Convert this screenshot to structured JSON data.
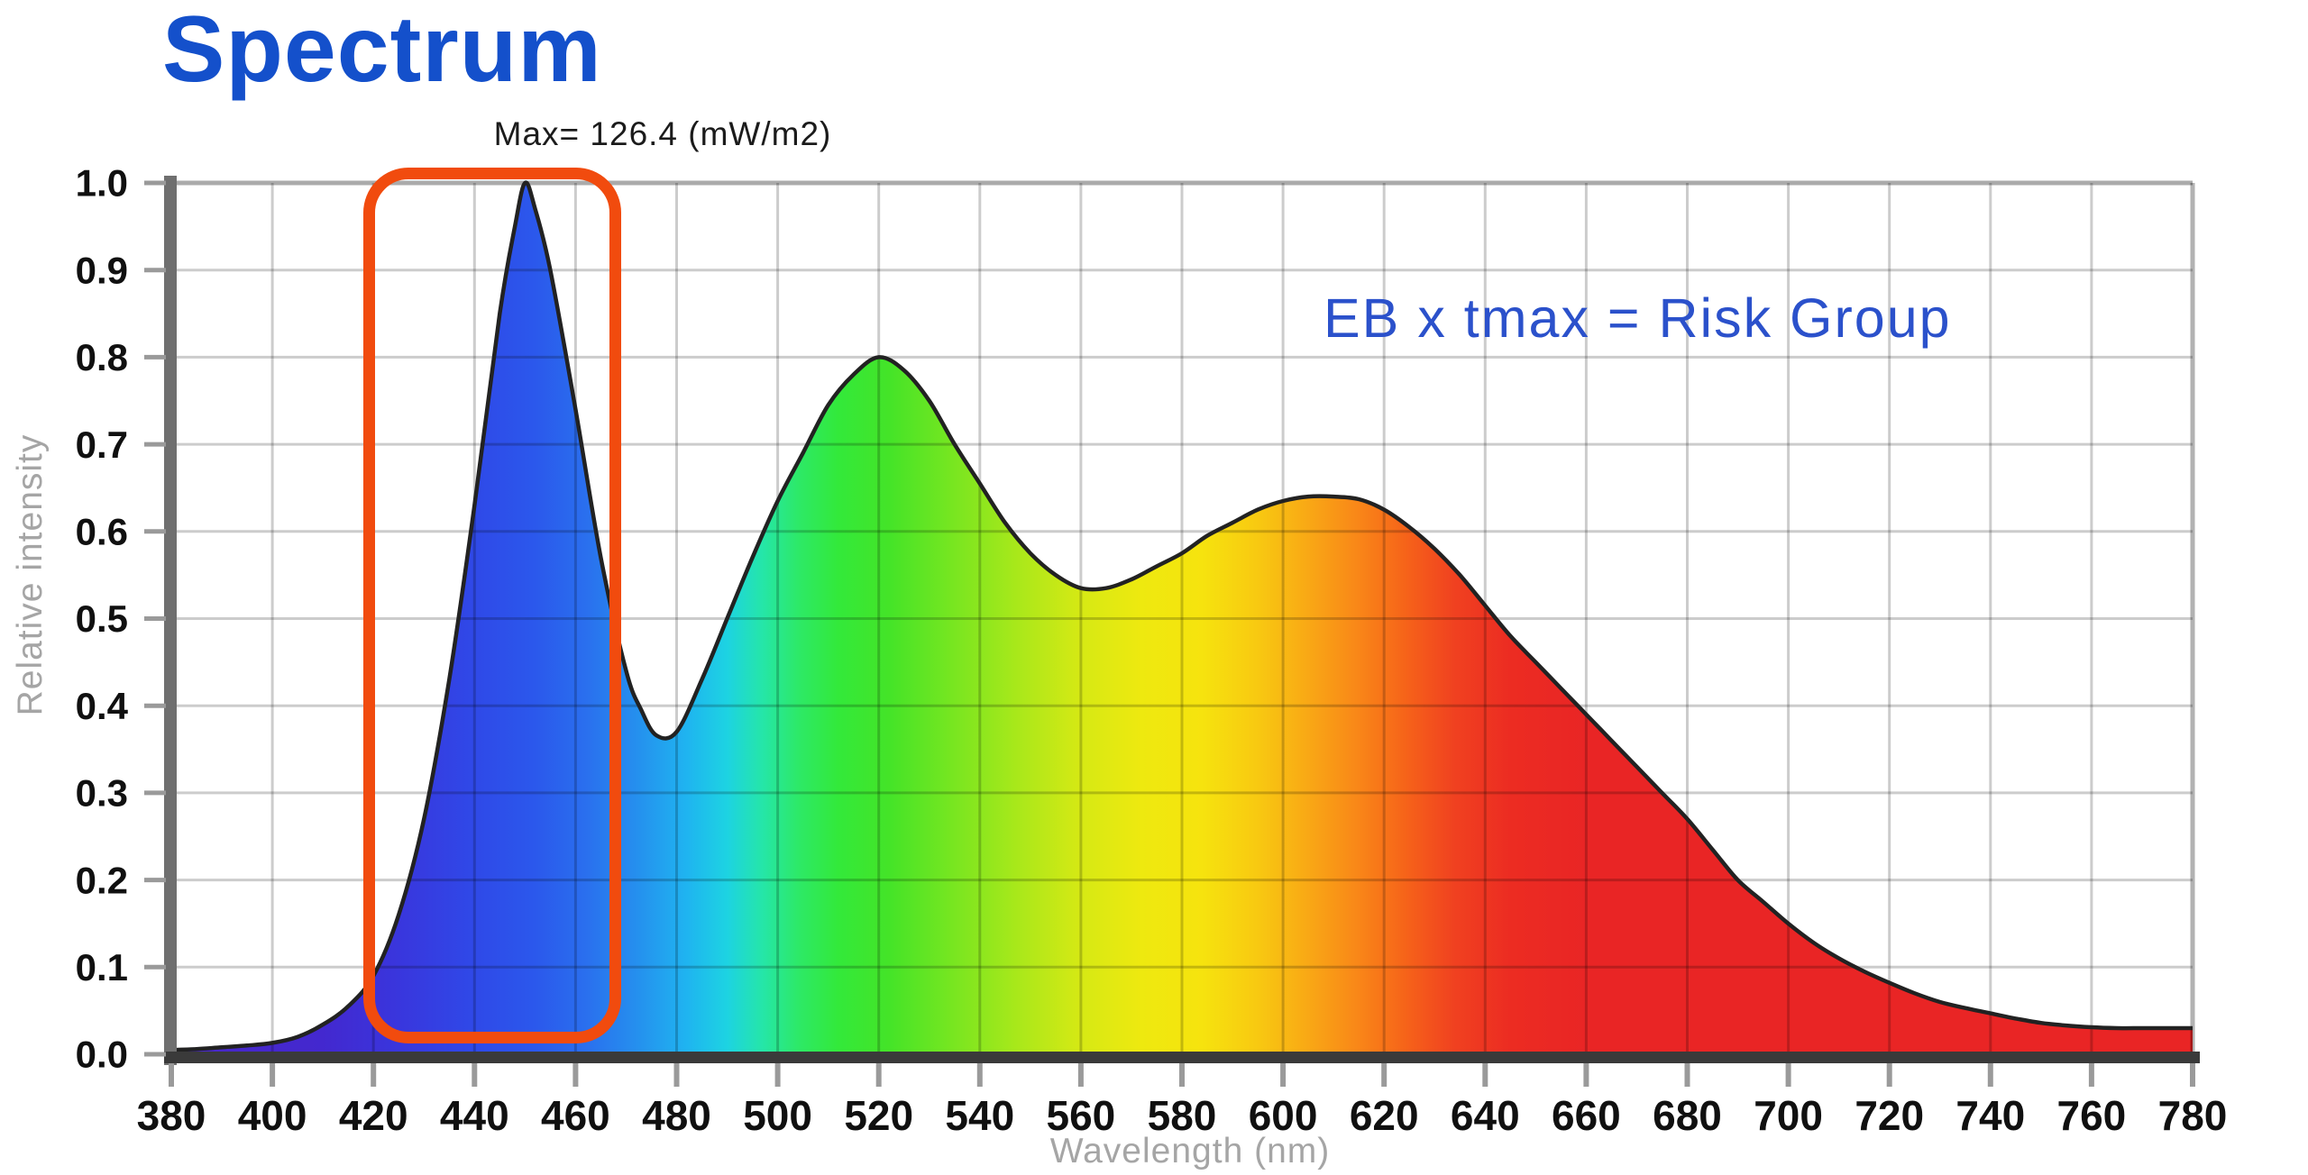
{
  "page": {
    "title": "Spectrum",
    "title_color": "#1450cb",
    "background": "#ffffff"
  },
  "annotations": {
    "max_label": "Max= 126.4 (mW/m2)",
    "risk_formula": "EB x tmax = Risk Group",
    "risk_formula_color": "#2b51cb"
  },
  "highlight_box": {
    "color": "#f14b0e",
    "wavelength_range": [
      418,
      469
    ],
    "intensity_range": [
      0.01,
      1.02
    ]
  },
  "chart_data": {
    "type": "area",
    "title": "Spectrum",
    "xlabel": "Wavelength (nm)",
    "ylabel": "Relative intensity",
    "xlim": [
      380,
      780
    ],
    "ylim": [
      0.0,
      1.0
    ],
    "grid": true,
    "x_ticks": [
      380,
      400,
      420,
      440,
      460,
      480,
      500,
      520,
      540,
      560,
      580,
      600,
      620,
      640,
      660,
      680,
      700,
      720,
      740,
      760,
      780
    ],
    "x_tick_labels": [
      "380",
      "400",
      "420",
      "440",
      "460",
      "480",
      "500",
      "520",
      "540",
      "560",
      "580",
      "600",
      "620",
      "640",
      "660",
      "680",
      "700",
      "720",
      "740",
      "760",
      "780"
    ],
    "y_ticks": [
      0.0,
      0.1,
      0.2,
      0.3,
      0.4,
      0.5,
      0.6,
      0.7,
      0.8,
      0.9,
      1.0
    ],
    "y_tick_labels": [
      "0.0",
      "0.1",
      "0.2",
      "0.3",
      "0.4",
      "0.5",
      "0.6",
      "0.7",
      "0.8",
      "0.9",
      "1.0"
    ],
    "series": [
      {
        "name": "relative_intensity",
        "points": [
          [
            380,
            0.005
          ],
          [
            385,
            0.006
          ],
          [
            390,
            0.008
          ],
          [
            395,
            0.01
          ],
          [
            400,
            0.013
          ],
          [
            405,
            0.02
          ],
          [
            410,
            0.034
          ],
          [
            415,
            0.055
          ],
          [
            420,
            0.09
          ],
          [
            425,
            0.16
          ],
          [
            430,
            0.27
          ],
          [
            435,
            0.43
          ],
          [
            440,
            0.63
          ],
          [
            445,
            0.85
          ],
          [
            448,
            0.95
          ],
          [
            450,
            1.0
          ],
          [
            452,
            0.97
          ],
          [
            455,
            0.9
          ],
          [
            460,
            0.74
          ],
          [
            465,
            0.57
          ],
          [
            470,
            0.44
          ],
          [
            473,
            0.395
          ],
          [
            476,
            0.366
          ],
          [
            480,
            0.37
          ],
          [
            485,
            0.43
          ],
          [
            490,
            0.5
          ],
          [
            495,
            0.57
          ],
          [
            500,
            0.635
          ],
          [
            505,
            0.69
          ],
          [
            510,
            0.745
          ],
          [
            515,
            0.78
          ],
          [
            520,
            0.8
          ],
          [
            525,
            0.785
          ],
          [
            530,
            0.75
          ],
          [
            535,
            0.7
          ],
          [
            540,
            0.655
          ],
          [
            545,
            0.61
          ],
          [
            550,
            0.575
          ],
          [
            555,
            0.55
          ],
          [
            560,
            0.535
          ],
          [
            565,
            0.535
          ],
          [
            570,
            0.545
          ],
          [
            575,
            0.56
          ],
          [
            580,
            0.575
          ],
          [
            585,
            0.595
          ],
          [
            590,
            0.61
          ],
          [
            595,
            0.625
          ],
          [
            600,
            0.635
          ],
          [
            605,
            0.64
          ],
          [
            610,
            0.64
          ],
          [
            615,
            0.637
          ],
          [
            620,
            0.625
          ],
          [
            625,
            0.605
          ],
          [
            630,
            0.58
          ],
          [
            635,
            0.55
          ],
          [
            640,
            0.515
          ],
          [
            645,
            0.48
          ],
          [
            650,
            0.45
          ],
          [
            655,
            0.42
          ],
          [
            660,
            0.39
          ],
          [
            665,
            0.36
          ],
          [
            670,
            0.33
          ],
          [
            675,
            0.3
          ],
          [
            680,
            0.27
          ],
          [
            685,
            0.235
          ],
          [
            690,
            0.2
          ],
          [
            695,
            0.175
          ],
          [
            700,
            0.15
          ],
          [
            705,
            0.128
          ],
          [
            710,
            0.11
          ],
          [
            715,
            0.095
          ],
          [
            720,
            0.082
          ],
          [
            725,
            0.07
          ],
          [
            730,
            0.06
          ],
          [
            735,
            0.053
          ],
          [
            740,
            0.047
          ],
          [
            745,
            0.041
          ],
          [
            750,
            0.036
          ],
          [
            755,
            0.033
          ],
          [
            760,
            0.031
          ],
          [
            765,
            0.03
          ],
          [
            770,
            0.03
          ],
          [
            775,
            0.03
          ],
          [
            780,
            0.03
          ]
        ]
      }
    ],
    "spectrum_gradient": [
      {
        "wl": 380,
        "color": "#4a28c8"
      },
      {
        "wl": 410,
        "color": "#4328cf"
      },
      {
        "wl": 425,
        "color": "#3936dd"
      },
      {
        "wl": 440,
        "color": "#2f49e8"
      },
      {
        "wl": 452,
        "color": "#2b58ec"
      },
      {
        "wl": 462,
        "color": "#2a6fee"
      },
      {
        "wl": 472,
        "color": "#258fee"
      },
      {
        "wl": 482,
        "color": "#1fb4f0"
      },
      {
        "wl": 490,
        "color": "#1dd3e2"
      },
      {
        "wl": 497,
        "color": "#25e6a8"
      },
      {
        "wl": 504,
        "color": "#2de968"
      },
      {
        "wl": 512,
        "color": "#33e93a"
      },
      {
        "wl": 522,
        "color": "#44e428"
      },
      {
        "wl": 535,
        "color": "#79e620"
      },
      {
        "wl": 548,
        "color": "#abe81a"
      },
      {
        "wl": 560,
        "color": "#d6e914"
      },
      {
        "wl": 572,
        "color": "#eee90f"
      },
      {
        "wl": 584,
        "color": "#f6e30e"
      },
      {
        "wl": 595,
        "color": "#f8c911"
      },
      {
        "wl": 605,
        "color": "#f9a815"
      },
      {
        "wl": 615,
        "color": "#f98618"
      },
      {
        "wl": 624,
        "color": "#f66419"
      },
      {
        "wl": 634,
        "color": "#f04120"
      },
      {
        "wl": 645,
        "color": "#ec2c22"
      },
      {
        "wl": 660,
        "color": "#e92525"
      },
      {
        "wl": 780,
        "color": "#e92525"
      }
    ],
    "style": {
      "grid_color_on_white": "#cccccc",
      "grid_major_color": "#aaaaaa",
      "curve_outline": "#222222",
      "axis_left_color": "#6f6f6f",
      "axis_bottom_color": "#3a3a3a",
      "tick_mark_color": "#9a9a9a",
      "tick_label_color": "#101010"
    }
  }
}
